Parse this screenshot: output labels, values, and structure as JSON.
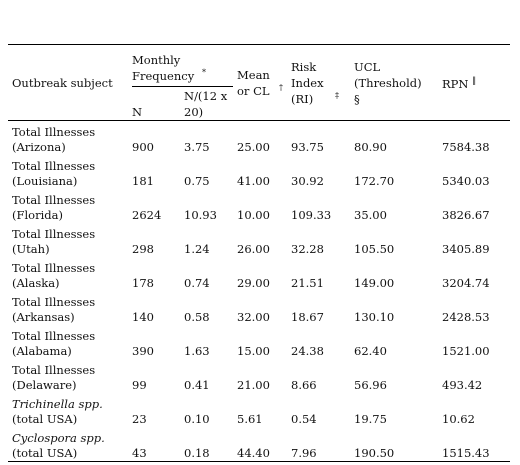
{
  "header": {
    "subject": "Outbreak subject",
    "frequency": {
      "label": "Monthly Frequency",
      "mark": "*"
    },
    "n": "N",
    "n_per": "N/(12 x 20)",
    "mean": {
      "label": "Mean or CL",
      "mark": "†"
    },
    "risk": {
      "label": "Risk Index (RI)",
      "mark": "‡"
    },
    "ucl": {
      "label": "UCL (Threshold)",
      "mark": "§"
    },
    "rpn": {
      "label": "RPN",
      "mark": "‖"
    }
  },
  "table": {
    "rows": [
      {
        "subject": "Total Illnesses",
        "place": "(Arizona)",
        "cells": [
          "900",
          "3.75",
          "25.00",
          "93.75",
          "80.90",
          "7584.38"
        ]
      },
      {
        "subject": "Total Illnesses",
        "place": "(Louisiana)",
        "cells": [
          "181",
          "0.75",
          "41.00",
          "30.92",
          "172.70",
          "5340.03"
        ]
      },
      {
        "subject": "Total Illnesses",
        "place": "(Florida)",
        "cells": [
          "2624",
          "10.93",
          "10.00",
          "109.33",
          "35.00",
          "3826.67"
        ]
      },
      {
        "subject": "Total Illnesses",
        "place": "(Utah)",
        "cells": [
          "298",
          "1.24",
          "26.00",
          "32.28",
          "105.50",
          "3405.89"
        ]
      },
      {
        "subject": "Total Illnesses",
        "place": "(Alaska)",
        "cells": [
          "178",
          "0.74",
          "29.00",
          "21.51",
          "149.00",
          "3204.74"
        ]
      },
      {
        "subject": "Total Illnesses",
        "place": "(Arkansas)",
        "cells": [
          "140",
          "0.58",
          "32.00",
          "18.67",
          "130.10",
          "2428.53"
        ]
      },
      {
        "subject": "Total Illnesses",
        "place": "(Alabama)",
        "cells": [
          "390",
          "1.63",
          "15.00",
          "24.38",
          "62.40",
          "1521.00"
        ]
      },
      {
        "subject": "Total Illnesses",
        "place": "(Delaware)",
        "cells": [
          "99",
          "0.41",
          "21.00",
          "8.66",
          "56.96",
          "493.42"
        ]
      },
      {
        "subject": "Trichinella spp.",
        "place": "(total USA)",
        "italic": true,
        "cells": [
          "23",
          "0.10",
          "5.61",
          "0.54",
          "19.75",
          "10.62"
        ]
      },
      {
        "subject": "Cyclospora spp.",
        "place": "(total USA)",
        "italic": true,
        "cells": [
          "43",
          "0.18",
          "44.40",
          "7.96",
          "190.50",
          "1515.43"
        ]
      }
    ]
  }
}
